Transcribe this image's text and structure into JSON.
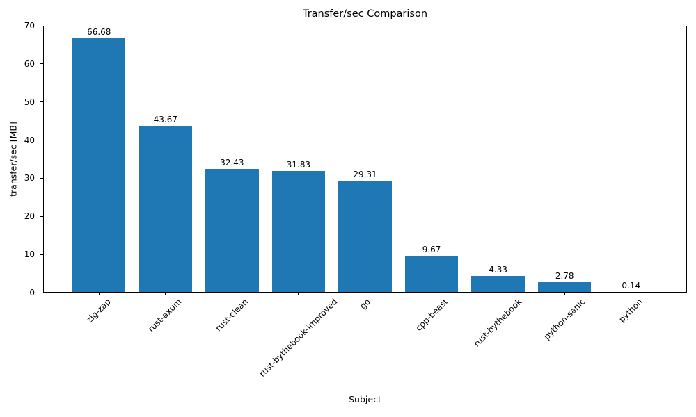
{
  "chart_data": {
    "type": "bar",
    "title": "Transfer/sec Comparison",
    "xlabel": "Subject",
    "ylabel": "transfer/sec [MB]",
    "categories": [
      "zig-zap",
      "rust-axum",
      "rust-clean",
      "rust-bythebook-improved",
      "go",
      "cpp-beast",
      "rust-bythebook",
      "python-sanic",
      "python"
    ],
    "values": [
      66.68,
      43.67,
      32.43,
      31.83,
      29.31,
      9.67,
      4.33,
      2.78,
      0.14
    ],
    "bar_labels": [
      "66.68",
      "43.67",
      "32.43",
      "31.83",
      "29.31",
      "9.67",
      "4.33",
      "2.78",
      "0.14"
    ],
    "bar_color": "#1f77b4",
    "ylim": [
      0,
      70.014
    ],
    "yticks": [
      0,
      10,
      20,
      30,
      40,
      50,
      60,
      70
    ],
    "xtick_rotation": 45,
    "grid": false,
    "legend_position": "none"
  }
}
